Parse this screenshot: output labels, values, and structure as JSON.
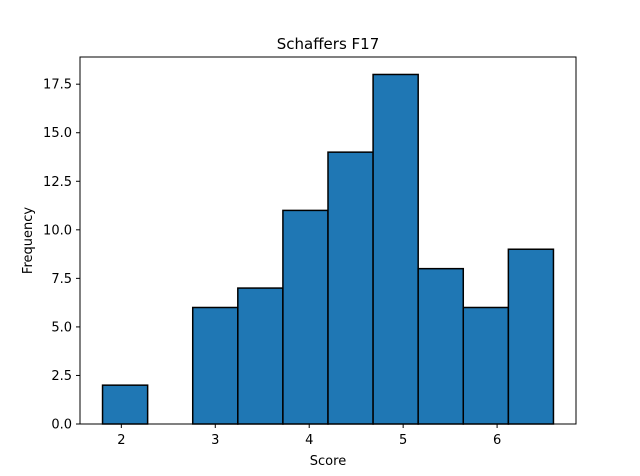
{
  "chart_data": {
    "type": "bar",
    "title": "Schaffers F17",
    "xlabel": "Score",
    "ylabel": "Frequency",
    "bins": [
      {
        "x0": 1.8,
        "x1": 2.28,
        "count": 2
      },
      {
        "x0": 2.28,
        "x1": 2.76,
        "count": 0
      },
      {
        "x0": 2.76,
        "x1": 3.24,
        "count": 6
      },
      {
        "x0": 3.24,
        "x1": 3.72,
        "count": 7
      },
      {
        "x0": 3.72,
        "x1": 4.2,
        "count": 11
      },
      {
        "x0": 4.2,
        "x1": 4.68,
        "count": 14
      },
      {
        "x0": 4.68,
        "x1": 5.16,
        "count": 18
      },
      {
        "x0": 5.16,
        "x1": 5.64,
        "count": 8
      },
      {
        "x0": 5.64,
        "x1": 6.12,
        "count": 6
      },
      {
        "x0": 6.12,
        "x1": 6.6,
        "count": 9
      }
    ],
    "xlim": [
      1.56,
      6.84
    ],
    "ylim": [
      0,
      18.9
    ],
    "xticks": [
      2,
      3,
      4,
      5,
      6
    ],
    "xtick_labels": [
      "2",
      "3",
      "4",
      "5",
      "6"
    ],
    "yticks": [
      0,
      2.5,
      5,
      7.5,
      10,
      12.5,
      15,
      17.5
    ],
    "ytick_labels": [
      "0.0",
      "2.5",
      "5.0",
      "7.5",
      "10.0",
      "12.5",
      "15.0",
      "17.5"
    ],
    "bar_color": "#1f77b4",
    "edge_color": "#000000",
    "grid": false,
    "legend": "none"
  }
}
